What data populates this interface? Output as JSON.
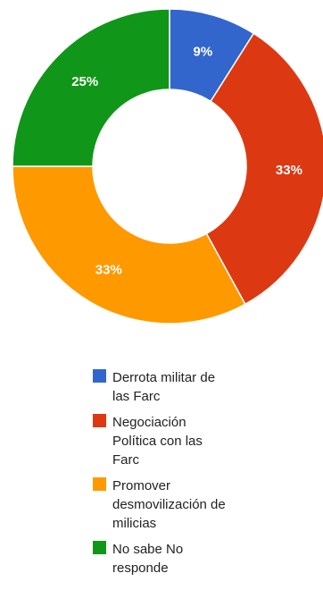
{
  "chart_data": {
    "type": "pie",
    "variant": "donut",
    "title": "",
    "categories": [
      "Derrota militar de las Farc",
      "Negociación Política con las Farc",
      "Promover desmovilización de milicias",
      "No sabe No responde"
    ],
    "values": [
      9,
      33,
      33,
      25
    ],
    "value_labels": [
      "9%",
      "33%",
      "33%",
      "25%"
    ],
    "colors": [
      "#3366cc",
      "#dc3912",
      "#ff9900",
      "#109618"
    ],
    "legend_placement": "bottom",
    "legend": [
      {
        "lines": [
          "Derrota militar de",
          "las Farc"
        ],
        "color": "#3366cc"
      },
      {
        "lines": [
          "Negociación",
          "Política con las",
          "Farc"
        ],
        "color": "#dc3912"
      },
      {
        "lines": [
          "Promover",
          "desmovilización de",
          "milicias"
        ],
        "color": "#ff9900"
      },
      {
        "lines": [
          "No sabe No",
          "responde"
        ],
        "color": "#109618"
      }
    ]
  }
}
